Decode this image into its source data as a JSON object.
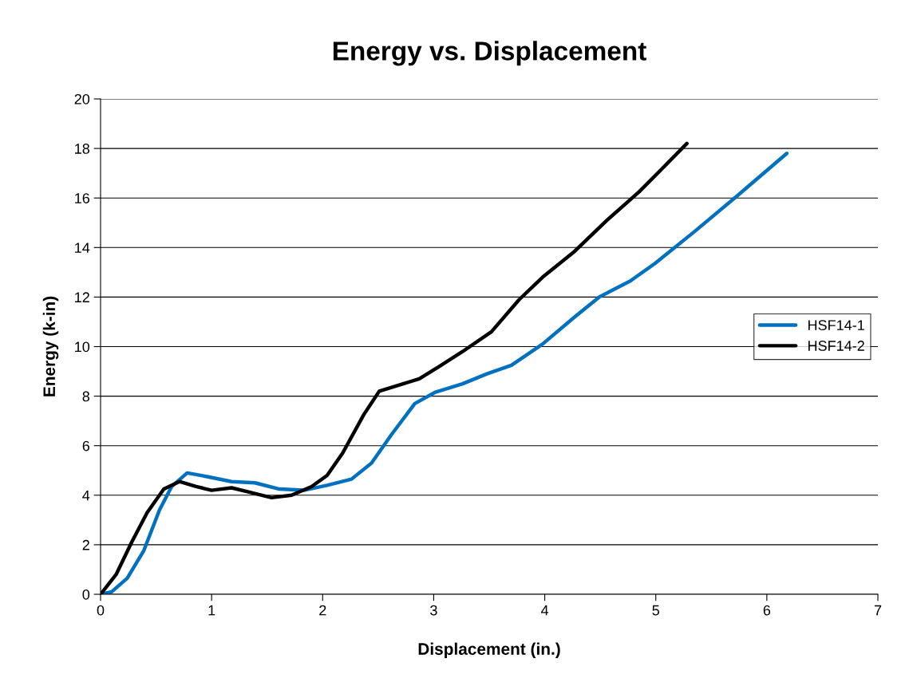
{
  "chart_data": {
    "type": "line",
    "title": "Energy vs. Displacement",
    "xlabel": "Displacement (in.)",
    "ylabel": "Energy (k-in)",
    "xlim": [
      0,
      7
    ],
    "xticks": [
      0,
      1,
      2,
      3,
      4,
      5,
      6,
      7
    ],
    "ylim": [
      0,
      20
    ],
    "yticks": [
      0,
      2,
      4,
      6,
      8,
      10,
      12,
      14,
      16,
      18,
      20
    ],
    "grid": "y",
    "legend": "right",
    "marker": "none",
    "line_style": "solid",
    "series": [
      {
        "name": "HSF14-1",
        "color": "#0070c0",
        "x": [
          0,
          0.1,
          0.24,
          0.39,
          0.53,
          0.64,
          0.78,
          0.96,
          1.18,
          1.39,
          1.61,
          1.83,
          2.04,
          2.26,
          2.44,
          2.62,
          2.83,
          3.01,
          3.26,
          3.48,
          3.7,
          3.98,
          4.27,
          4.49,
          4.77,
          4.99,
          5.35,
          5.71,
          6.18
        ],
        "values": [
          0,
          0.1,
          0.65,
          1.77,
          3.4,
          4.35,
          4.9,
          4.75,
          4.55,
          4.5,
          4.25,
          4.2,
          4.4,
          4.65,
          5.3,
          6.45,
          7.7,
          8.15,
          8.5,
          8.9,
          9.25,
          10.1,
          11.2,
          12.0,
          12.65,
          13.35,
          14.65,
          16.0,
          17.8
        ]
      },
      {
        "name": "HSF14-2",
        "color": "#000000",
        "x": [
          0,
          0.14,
          0.28,
          0.42,
          0.57,
          0.71,
          0.86,
          1.0,
          1.18,
          1.36,
          1.54,
          1.72,
          1.9,
          2.04,
          2.18,
          2.37,
          2.51,
          2.69,
          2.87,
          3.05,
          3.26,
          3.52,
          3.77,
          3.98,
          4.27,
          4.56,
          4.85,
          5.06,
          5.28
        ],
        "values": [
          0,
          0.8,
          2.1,
          3.3,
          4.25,
          4.55,
          4.35,
          4.2,
          4.3,
          4.1,
          3.9,
          4.0,
          4.35,
          4.8,
          5.7,
          7.25,
          8.2,
          8.45,
          8.7,
          9.2,
          9.8,
          10.6,
          11.9,
          12.8,
          13.85,
          15.1,
          16.25,
          17.2,
          18.2
        ]
      }
    ]
  }
}
